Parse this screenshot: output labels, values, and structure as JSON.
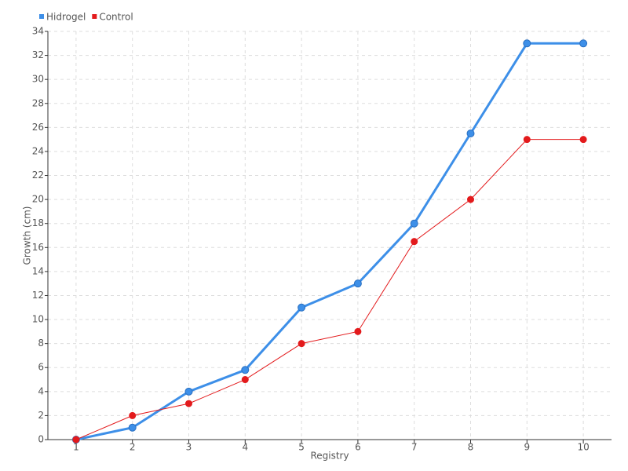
{
  "chart_data": {
    "type": "line",
    "x_label": "Registry",
    "y_label": "Growth (cm)",
    "categories": [
      "1",
      "2",
      "3",
      "4",
      "5",
      "6",
      "7",
      "8",
      "9",
      "10"
    ],
    "series": [
      {
        "name": "Hidrogel",
        "color": "#3d8fe8",
        "values": [
          0,
          1,
          4,
          5.8,
          11,
          13,
          18,
          25.5,
          33,
          33
        ]
      },
      {
        "name": "Control",
        "color": "#e31a1c",
        "values": [
          0,
          2,
          3,
          5,
          8,
          9,
          16.5,
          20,
          25,
          25
        ]
      }
    ],
    "ylim": [
      0,
      34
    ],
    "yticks": [
      0,
      2,
      4,
      6,
      8,
      10,
      12,
      14,
      16,
      18,
      20,
      22,
      24,
      26,
      28,
      30,
      32,
      34
    ],
    "grid": true,
    "legend": "top-left"
  }
}
